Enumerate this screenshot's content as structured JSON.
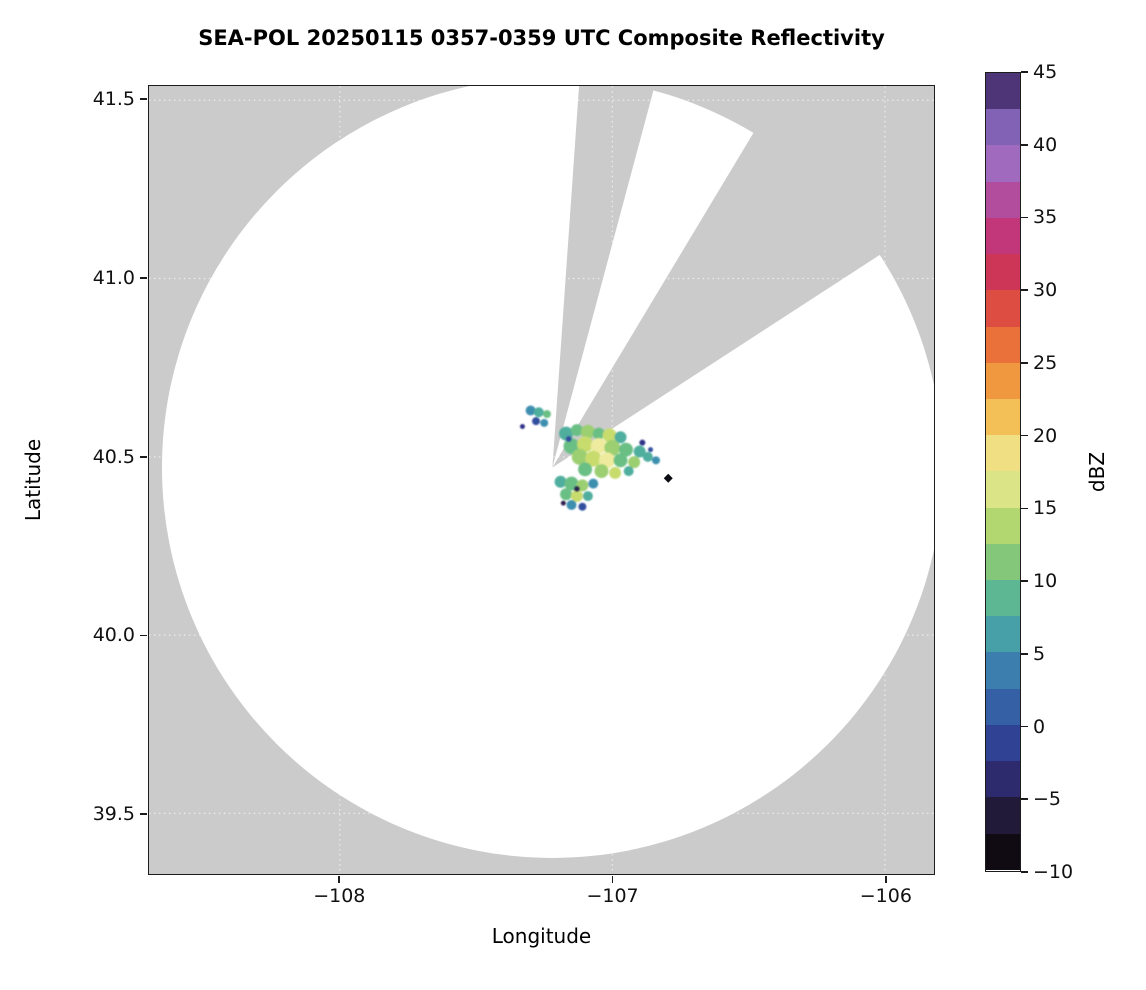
{
  "chart_data": {
    "type": "heatmap",
    "title": "SEA-POL 20250115 0357-0359 UTC Composite Reflectivity",
    "xlabel": "Longitude",
    "ylabel": "Latitude",
    "xlim": [
      -108.7,
      -105.82
    ],
    "ylim": [
      39.33,
      41.54
    ],
    "grid": true,
    "xticks": [
      -108,
      -107,
      -106
    ],
    "xtick_labels": [
      "−108",
      "−107",
      "−106"
    ],
    "yticks": [
      39.5,
      40.0,
      40.5,
      41.0,
      41.5
    ],
    "ytick_labels": [
      "39.5",
      "40.0",
      "40.5",
      "41.0",
      "41.5"
    ],
    "colors": {
      "outside_scan": "#cbcbcb",
      "scan_area": "#ffffff",
      "gridline": "#ffffff",
      "axis": "#1c1c1c"
    },
    "radar": {
      "lon": -107.22,
      "lat": 40.47,
      "radius_deg_lat": 1.095
    },
    "blocked_sectors_deg": [
      [
        4,
        15
      ],
      [
        31,
        57
      ]
    ],
    "colorbar": {
      "label": "dBZ",
      "min": -10,
      "max": 45,
      "block_step": 2.5,
      "ticks": [
        -10,
        -5,
        0,
        5,
        10,
        15,
        20,
        25,
        30,
        35,
        40,
        45
      ],
      "tick_labels": [
        "−10",
        "−5",
        "0",
        "5",
        "10",
        "15",
        "20",
        "25",
        "30",
        "35",
        "40",
        "45"
      ],
      "stops": [
        {
          "v": -10.0,
          "c": "#050103"
        },
        {
          "v": -7.5,
          "c": "#1a1220"
        },
        {
          "v": -5.0,
          "c": "#2a2152"
        },
        {
          "v": -2.5,
          "c": "#2f3388"
        },
        {
          "v": 0.0,
          "c": "#31509e"
        },
        {
          "v": 2.5,
          "c": "#3a6fae"
        },
        {
          "v": 5.0,
          "c": "#3e8fb0"
        },
        {
          "v": 7.5,
          "c": "#4fae9e"
        },
        {
          "v": 10.0,
          "c": "#6bbf85"
        },
        {
          "v": 12.5,
          "c": "#9ccf71"
        },
        {
          "v": 15.0,
          "c": "#c8dc6e"
        },
        {
          "v": 17.5,
          "c": "#eeeb9e"
        },
        {
          "v": 20.0,
          "c": "#f2d567"
        },
        {
          "v": 22.5,
          "c": "#f2ab44"
        },
        {
          "v": 25.0,
          "c": "#ee8439"
        },
        {
          "v": 27.5,
          "c": "#e55d3a"
        },
        {
          "v": 30.0,
          "c": "#d53c49"
        },
        {
          "v": 32.5,
          "c": "#c62f66"
        },
        {
          "v": 35.0,
          "c": "#bc3f8c"
        },
        {
          "v": 37.5,
          "c": "#a85bb0"
        },
        {
          "v": 40.0,
          "c": "#9878cb"
        },
        {
          "v": 42.5,
          "c": "#6a4b9e"
        },
        {
          "v": 45.0,
          "c": "#2f1e50"
        }
      ]
    },
    "echoes": [
      [
        -107.17,
        40.565,
        7,
        "#4fae9e"
      ],
      [
        -107.13,
        40.575,
        6,
        "#6bbf85"
      ],
      [
        -107.09,
        40.57,
        7,
        "#9ccf71"
      ],
      [
        -107.05,
        40.565,
        6,
        "#6bbf85"
      ],
      [
        -107.01,
        40.56,
        7,
        "#c8dc6e"
      ],
      [
        -106.97,
        40.555,
        6,
        "#4fae9e"
      ],
      [
        -107.15,
        40.53,
        8,
        "#6bbf85"
      ],
      [
        -107.1,
        40.535,
        8,
        "#c8dc6e"
      ],
      [
        -107.05,
        40.53,
        8,
        "#eeeb9e"
      ],
      [
        -107.0,
        40.525,
        8,
        "#9ccf71"
      ],
      [
        -106.95,
        40.52,
        7,
        "#6bbf85"
      ],
      [
        -106.9,
        40.515,
        6,
        "#4fae9e"
      ],
      [
        -107.12,
        40.5,
        8,
        "#9ccf71"
      ],
      [
        -107.07,
        40.495,
        8,
        "#c8dc6e"
      ],
      [
        -107.02,
        40.49,
        8,
        "#eeeb9e"
      ],
      [
        -106.97,
        40.49,
        7,
        "#6bbf85"
      ],
      [
        -106.92,
        40.485,
        6,
        "#9ccf71"
      ],
      [
        -106.87,
        40.5,
        5,
        "#4fae9e"
      ],
      [
        -106.84,
        40.49,
        4,
        "#3e8fb0"
      ],
      [
        -107.1,
        40.465,
        7,
        "#6bbf85"
      ],
      [
        -107.04,
        40.46,
        7,
        "#9ccf71"
      ],
      [
        -106.99,
        40.455,
        6,
        "#c8dc6e"
      ],
      [
        -106.94,
        40.46,
        5,
        "#4fae9e"
      ],
      [
        -107.16,
        40.55,
        3,
        "#31509e"
      ],
      [
        -106.89,
        40.54,
        3,
        "#2f3388"
      ],
      [
        -106.86,
        40.52,
        2.5,
        "#31509e"
      ],
      [
        -107.19,
        40.43,
        6,
        "#4fae9e"
      ],
      [
        -107.15,
        40.425,
        7,
        "#6bbf85"
      ],
      [
        -107.11,
        40.42,
        6,
        "#9ccf71"
      ],
      [
        -107.07,
        40.425,
        5,
        "#3e8fb0"
      ],
      [
        -107.17,
        40.395,
        6,
        "#6bbf85"
      ],
      [
        -107.13,
        40.39,
        6,
        "#c8dc6e"
      ],
      [
        -107.09,
        40.39,
        5,
        "#4fae9e"
      ],
      [
        -107.15,
        40.365,
        5,
        "#3e8fb0"
      ],
      [
        -107.11,
        40.36,
        4,
        "#31509e"
      ],
      [
        -107.13,
        40.41,
        3,
        "#2a2152"
      ],
      [
        -107.18,
        40.37,
        2.5,
        "#2f1e50"
      ],
      [
        -107.3,
        40.63,
        5,
        "#3e8fb0"
      ],
      [
        -107.27,
        40.625,
        5,
        "#4fae9e"
      ],
      [
        -107.24,
        40.62,
        4,
        "#6bbf85"
      ],
      [
        -107.28,
        40.6,
        4,
        "#31509e"
      ],
      [
        -107.25,
        40.595,
        4,
        "#3e8fb0"
      ],
      [
        -107.33,
        40.585,
        2.5,
        "#2f3388"
      ]
    ],
    "point_marker": {
      "lon": -106.795,
      "lat": 40.44,
      "color": "#0b0b12",
      "shape": "diamond"
    }
  }
}
